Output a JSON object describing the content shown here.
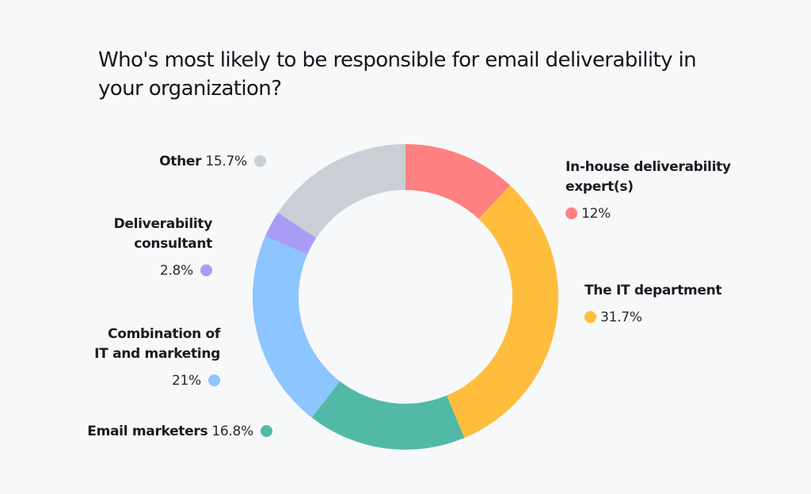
{
  "chart_data": {
    "type": "pie",
    "variant": "donut",
    "title": "Who's most likely to be responsible for email deliverability in your organization?",
    "unit": "%",
    "start_angle": "12 o'clock",
    "direction": "clockwise",
    "slices": [
      {
        "label": "In-house deliverability expert(s)",
        "value": 12,
        "display": "12%",
        "color": "#ff8080"
      },
      {
        "label": "The IT department",
        "value": 31.7,
        "display": "31.7%",
        "color": "#ffbd3d"
      },
      {
        "label": "Email marketers",
        "value": 16.8,
        "display": "16.8%",
        "color": "#52b9a6"
      },
      {
        "label": "Combination of IT and marketing",
        "value": 21,
        "display": "21%",
        "color": "#8cc5ff"
      },
      {
        "label": "Deliverability consultant",
        "value": 2.8,
        "display": "2.8%",
        "color": "#a99cf7"
      },
      {
        "label": "Other",
        "value": 15.7,
        "display": "15.7%",
        "color": "#c9cfd5"
      }
    ]
  },
  "labels": {
    "inhouse_line1": "In-house deliverability",
    "inhouse_line2": "expert(s)",
    "inhouse_value": "12%",
    "it_title": "The IT department",
    "it_value": "31.7%",
    "other_title": "Other",
    "other_value": "15.7%",
    "consultant_line1": "Deliverability",
    "consultant_line2": "consultant",
    "consultant_value": "2.8%",
    "combo_line1": "Combination of",
    "combo_line2": "IT and marketing",
    "combo_value": "21%",
    "email_title": "Email marketers",
    "email_value": "16.8%"
  }
}
